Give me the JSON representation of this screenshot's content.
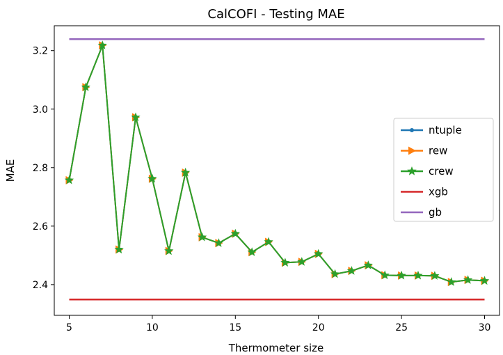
{
  "chart_data": {
    "type": "line",
    "title": "CalCOFI - Testing MAE",
    "xlabel": "Thermometer size",
    "ylabel": "MAE",
    "xlim": [
      4.1,
      30.9
    ],
    "ylim": [
      2.295,
      3.285
    ],
    "xticks": [
      5,
      10,
      15,
      20,
      25,
      30
    ],
    "xtick_labels": [
      "5",
      "10",
      "15",
      "20",
      "25",
      "30"
    ],
    "yticks": [
      2.4,
      2.6,
      2.8,
      3.0,
      3.2
    ],
    "ytick_labels": [
      "2.4",
      "2.6",
      "2.8",
      "3.0",
      "3.2"
    ],
    "grid": false,
    "legend_position": "right",
    "x": [
      5,
      6,
      7,
      8,
      9,
      10,
      11,
      12,
      13,
      14,
      15,
      16,
      17,
      18,
      19,
      20,
      21,
      22,
      23,
      24,
      25,
      26,
      27,
      28,
      29,
      30
    ],
    "series": [
      {
        "name": "ntuple",
        "color": "#1f77b4",
        "marker": "dot",
        "values": [
          2.757,
          3.075,
          3.218,
          2.52,
          2.972,
          2.762,
          2.515,
          2.783,
          2.562,
          2.542,
          2.574,
          2.511,
          2.546,
          2.475,
          2.478,
          2.505,
          2.436,
          2.447,
          2.466,
          2.432,
          2.431,
          2.431,
          2.43,
          2.409,
          2.416,
          2.413
        ]
      },
      {
        "name": "rew",
        "color": "#ff7f0e",
        "marker": "triangle-right",
        "values": [
          2.757,
          3.075,
          3.218,
          2.52,
          2.972,
          2.762,
          2.515,
          2.783,
          2.562,
          2.542,
          2.574,
          2.511,
          2.546,
          2.475,
          2.478,
          2.505,
          2.436,
          2.447,
          2.466,
          2.432,
          2.431,
          2.431,
          2.43,
          2.409,
          2.416,
          2.413
        ]
      },
      {
        "name": "crew",
        "color": "#2ca02c",
        "marker": "star",
        "values": [
          2.757,
          3.075,
          3.218,
          2.52,
          2.972,
          2.762,
          2.515,
          2.783,
          2.562,
          2.542,
          2.574,
          2.511,
          2.546,
          2.475,
          2.478,
          2.505,
          2.436,
          2.447,
          2.466,
          2.432,
          2.431,
          2.431,
          2.43,
          2.409,
          2.416,
          2.413
        ]
      },
      {
        "name": "xgb",
        "color": "#d62728",
        "marker": "none",
        "values": [
          2.349,
          2.349,
          2.349,
          2.349,
          2.349,
          2.349,
          2.349,
          2.349,
          2.349,
          2.349,
          2.349,
          2.349,
          2.349,
          2.349,
          2.349,
          2.349,
          2.349,
          2.349,
          2.349,
          2.349,
          2.349,
          2.349,
          2.349,
          2.349,
          2.349,
          2.349
        ]
      },
      {
        "name": "gb",
        "color": "#9467bd",
        "marker": "none",
        "values": [
          3.239,
          3.239,
          3.239,
          3.239,
          3.239,
          3.239,
          3.239,
          3.239,
          3.239,
          3.239,
          3.239,
          3.239,
          3.239,
          3.239,
          3.239,
          3.239,
          3.239,
          3.239,
          3.239,
          3.239,
          3.239,
          3.239,
          3.239,
          3.239,
          3.239,
          3.239
        ]
      }
    ]
  }
}
